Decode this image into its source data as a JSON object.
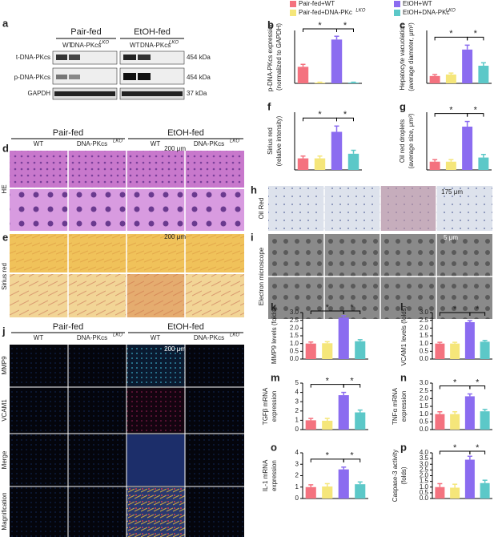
{
  "legend": [
    {
      "name": "Pair-fed+WT",
      "color": "#f4727f"
    },
    {
      "name": "Pair-fed+DNA-PKc",
      "sup": "LKO",
      "color": "#f5e67a"
    },
    {
      "name": "EtOH+WT",
      "color": "#8b6cf0"
    },
    {
      "name": "EtOH+DNA-PKc",
      "sup": "LKO",
      "color": "#5cc8c8"
    }
  ],
  "panel_a": {
    "label": "a",
    "groups": [
      "Pair-fed",
      "EtOH-fed"
    ],
    "lanes": [
      "WT",
      "DNA-PKcs",
      "WT",
      "DNA-PKcs"
    ],
    "lane_sup": "LKO",
    "rows": [
      "t-DNA-PKcs",
      "p-DNA-PKcs",
      "GAPDH"
    ],
    "sizes": [
      "454 kDa",
      "454 kDa",
      "37 kDa"
    ]
  },
  "panel_d": {
    "label": "d",
    "groups": [
      "Pair-fed",
      "EtOH-fed"
    ],
    "cols": [
      "WT",
      "DNA-PKcs",
      "WT",
      "DNA-PKcs"
    ],
    "col_sup": "LKO",
    "row": "HE",
    "scale": "200 μm"
  },
  "panel_e": {
    "label": "e",
    "row": "Sirius red",
    "scale": "200 μm"
  },
  "panel_h": {
    "label": "h",
    "row": "Oil Red",
    "scale": "175 μm"
  },
  "panel_i": {
    "label": "i",
    "row": "Electron microscope",
    "scale": "5 μm"
  },
  "panel_j": {
    "label": "j",
    "groups": [
      "Pair-fed",
      "EtOH-fed"
    ],
    "cols": [
      "WT",
      "DNA-PKcs",
      "WT",
      "DNA-PKcs"
    ],
    "col_sup": "LKO",
    "rows": [
      "MMP9",
      "VCAM1",
      "Merge",
      "Magnification"
    ],
    "scale": "200 μm"
  },
  "chart_data": [
    {
      "type": "bar",
      "label": "b",
      "ylabel": [
        "p-DNA-PKcs expression",
        "(normalized to GAPDH)"
      ],
      "values": [
        1.0,
        0.05,
        2.65,
        0.05
      ],
      "errors": [
        0.15,
        0.02,
        0.2,
        0.02
      ],
      "ylim": [
        0,
        3.2
      ],
      "annotations": [
        "*",
        "*"
      ]
    },
    {
      "type": "bar",
      "label": "c",
      "ylabel": [
        "Hepatocyte vacuolation",
        "(average diameter, μm²)"
      ],
      "values": [
        5,
        6,
        23,
        12
      ],
      "errors": [
        1,
        1,
        3,
        2
      ],
      "ylim": [
        0,
        36
      ],
      "annotations": [
        "*",
        "*"
      ]
    },
    {
      "type": "bar",
      "label": "f",
      "ylabel": [
        "Sirius red",
        "(relative intensity)"
      ],
      "values": [
        1.0,
        1.0,
        3.3,
        1.4
      ],
      "errors": [
        0.2,
        0.2,
        0.5,
        0.3
      ],
      "ylim": [
        0,
        5
      ],
      "annotations": [
        "*",
        "*"
      ]
    },
    {
      "type": "bar",
      "label": "g",
      "ylabel": [
        "Oil red droplets",
        "(average size, μm²)"
      ],
      "values": [
        4,
        4,
        21,
        6
      ],
      "errors": [
        1,
        1,
        2.5,
        1.5
      ],
      "ylim": [
        0,
        28
      ],
      "annotations": [
        "*",
        "*"
      ]
    },
    {
      "type": "bar",
      "label": "k",
      "ylabel": [
        "MMP9 levels (folds)"
      ],
      "values": [
        1.0,
        1.02,
        2.68,
        1.15
      ],
      "errors": [
        0.1,
        0.1,
        0.12,
        0.1
      ],
      "ylim": [
        0,
        3.0
      ],
      "yticks": [
        {
          "value": 0,
          "label": "0.0"
        },
        0.5,
        {
          "value": 1,
          "label": "1.0"
        },
        1.5,
        {
          "value": 2,
          "label": "2.0"
        },
        2.5,
        {
          "value": 3,
          "label": "3.0"
        }
      ],
      "annotations": [
        "*",
        "*"
      ]
    },
    {
      "type": "bar",
      "label": "l",
      "ylabel": [
        "VCAM1 levels (folds)"
      ],
      "values": [
        1.0,
        1.0,
        2.38,
        1.12
      ],
      "errors": [
        0.08,
        0.08,
        0.1,
        0.08
      ],
      "ylim": [
        0,
        3.0
      ],
      "yticks": [
        {
          "value": 0,
          "label": "0.0"
        },
        0.5,
        {
          "value": 1,
          "label": "1.0"
        },
        1.5,
        {
          "value": 2,
          "label": "2.0"
        },
        2.5,
        {
          "value": 3,
          "label": "3.0"
        }
      ],
      "annotations": [
        "*",
        "*"
      ]
    },
    {
      "type": "bar",
      "label": "m",
      "ylabel": [
        "TGFβ mRNA",
        "expression"
      ],
      "values": [
        1.0,
        0.95,
        3.7,
        1.85
      ],
      "errors": [
        0.2,
        0.25,
        0.3,
        0.25
      ],
      "ylim": [
        0,
        5
      ],
      "yticks": [
        0,
        1,
        2,
        3,
        4,
        5
      ],
      "annotations": [
        "*",
        "*"
      ]
    },
    {
      "type": "bar",
      "label": "n",
      "ylabel": [
        "TNFα mRNA",
        "expression"
      ],
      "values": [
        1.0,
        1.0,
        2.15,
        1.18
      ],
      "errors": [
        0.15,
        0.15,
        0.15,
        0.12
      ],
      "ylim": [
        0,
        3.0
      ],
      "yticks": [
        {
          "value": 0,
          "label": "0.0"
        },
        0.5,
        {
          "value": 1,
          "label": "1.0"
        },
        1.5,
        {
          "value": 2,
          "label": "2.0"
        },
        2.5,
        {
          "value": 3,
          "label": "3.0"
        }
      ],
      "annotations": [
        "*",
        "*"
      ]
    },
    {
      "type": "bar",
      "label": "o",
      "ylabel": [
        "IL-1 mRNA",
        "expression"
      ],
      "values": [
        1.0,
        1.05,
        2.55,
        1.25
      ],
      "errors": [
        0.2,
        0.25,
        0.2,
        0.2
      ],
      "ylim": [
        0,
        4
      ],
      "yticks": [
        0,
        1,
        2,
        3,
        4
      ],
      "annotations": [
        "*",
        "*"
      ]
    },
    {
      "type": "bar",
      "label": "p",
      "ylabel": [
        "Caspase-3 activity",
        "(folds)"
      ],
      "values": [
        1.0,
        0.95,
        3.4,
        1.35
      ],
      "errors": [
        0.3,
        0.3,
        0.3,
        0.25
      ],
      "ylim": [
        0,
        4.0
      ],
      "yticks": [
        {
          "value": 0,
          "label": "0.0"
        },
        0.5,
        {
          "value": 1,
          "label": "1.0"
        },
        1.5,
        {
          "value": 2,
          "label": "2.0"
        },
        2.5,
        {
          "value": 3,
          "label": "3.0"
        },
        3.5,
        {
          "value": 4,
          "label": "4.0"
        }
      ],
      "annotations": [
        "*",
        "*"
      ]
    }
  ]
}
